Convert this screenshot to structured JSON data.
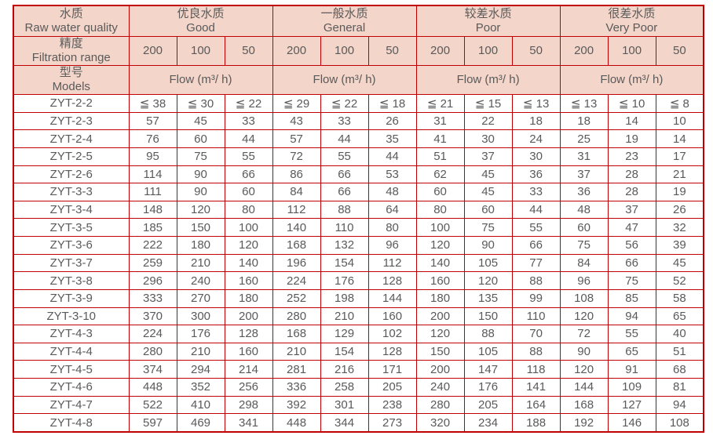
{
  "colors": {
    "border": "#c00000",
    "header_bg": "#f3d5ca",
    "text": "#5a5a5a",
    "page_bg": "#ffffff"
  },
  "header": {
    "corner_row1": {
      "zh": "水质",
      "en": "Raw water quality"
    },
    "corner_row2": {
      "zh": "精度",
      "en": "Filtration range"
    },
    "corner_row3": {
      "zh": "型号",
      "en": "Models"
    },
    "quality_groups": [
      {
        "zh": "优良水质",
        "en": "Good"
      },
      {
        "zh": "一般水质",
        "en": "General"
      },
      {
        "zh": "较差水质",
        "en": "Poor"
      },
      {
        "zh": "很差水质",
        "en": "Very Poor"
      }
    ],
    "filtration_values": [
      "200",
      "100",
      "50"
    ],
    "flow_label": "Flow (m³/ h)"
  },
  "rows": [
    {
      "model": "ZYT-2-2",
      "values": [
        "≦ 38",
        "≦ 30",
        "≦ 22",
        "≦ 29",
        "≦ 22",
        "≦ 18",
        "≦ 21",
        "≦ 15",
        "≦ 13",
        "≦ 13",
        "≦ 10",
        "≦ 8"
      ]
    },
    {
      "model": "ZYT-2-3",
      "values": [
        "57",
        "45",
        "33",
        "43",
        "33",
        "26",
        "31",
        "22",
        "18",
        "18",
        "14",
        "10"
      ]
    },
    {
      "model": "ZYT-2-4",
      "values": [
        "76",
        "60",
        "44",
        "57",
        "44",
        "35",
        "41",
        "30",
        "24",
        "25",
        "19",
        "14"
      ]
    },
    {
      "model": "ZYT-2-5",
      "values": [
        "95",
        "75",
        "55",
        "72",
        "55",
        "44",
        "51",
        "37",
        "30",
        "31",
        "23",
        "17"
      ]
    },
    {
      "model": "ZYT-2-6",
      "values": [
        "114",
        "90",
        "66",
        "86",
        "66",
        "53",
        "62",
        "45",
        "36",
        "37",
        "28",
        "21"
      ]
    },
    {
      "model": "ZYT-3-3",
      "values": [
        "111",
        "90",
        "60",
        "84",
        "66",
        "48",
        "60",
        "45",
        "33",
        "36",
        "28",
        "19"
      ]
    },
    {
      "model": "ZYT-3-4",
      "values": [
        "148",
        "120",
        "80",
        "112",
        "88",
        "64",
        "80",
        "60",
        "44",
        "48",
        "37",
        "26"
      ]
    },
    {
      "model": "ZYT-3-5",
      "values": [
        "185",
        "150",
        "100",
        "140",
        "110",
        "80",
        "100",
        "75",
        "55",
        "60",
        "47",
        "32"
      ]
    },
    {
      "model": "ZYT-3-6",
      "values": [
        "222",
        "180",
        "120",
        "168",
        "132",
        "96",
        "120",
        "90",
        "66",
        "75",
        "56",
        "39"
      ]
    },
    {
      "model": "ZYT-3-7",
      "values": [
        "259",
        "210",
        "140",
        "196",
        "154",
        "112",
        "140",
        "105",
        "77",
        "84",
        "66",
        "45"
      ]
    },
    {
      "model": "ZYT-3-8",
      "values": [
        "296",
        "240",
        "160",
        "224",
        "176",
        "128",
        "160",
        "120",
        "88",
        "96",
        "75",
        "52"
      ]
    },
    {
      "model": "ZYT-3-9",
      "values": [
        "333",
        "270",
        "180",
        "252",
        "198",
        "144",
        "180",
        "135",
        "99",
        "108",
        "85",
        "58"
      ]
    },
    {
      "model": "ZYT-3-10",
      "values": [
        "370",
        "300",
        "200",
        "280",
        "210",
        "160",
        "200",
        "150",
        "110",
        "120",
        "94",
        "65"
      ]
    },
    {
      "model": "ZYT-4-3",
      "values": [
        "224",
        "176",
        "128",
        "168",
        "129",
        "102",
        "120",
        "88",
        "70",
        "72",
        "55",
        "40"
      ]
    },
    {
      "model": "ZYT-4-4",
      "values": [
        "280",
        "210",
        "160",
        "210",
        "154",
        "128",
        "150",
        "105",
        "88",
        "90",
        "65",
        "51"
      ]
    },
    {
      "model": "ZYT-4-5",
      "values": [
        "374",
        "294",
        "214",
        "281",
        "216",
        "171",
        "200",
        "147",
        "118",
        "120",
        "91",
        "68"
      ]
    },
    {
      "model": "ZYT-4-6",
      "values": [
        "448",
        "352",
        "256",
        "336",
        "258",
        "205",
        "240",
        "176",
        "141",
        "144",
        "109",
        "81"
      ]
    },
    {
      "model": "ZYT-4-7",
      "values": [
        "522",
        "410",
        "298",
        "392",
        "301",
        "238",
        "280",
        "205",
        "164",
        "168",
        "127",
        "94"
      ]
    },
    {
      "model": "ZYT-4-8",
      "values": [
        "597",
        "469",
        "341",
        "448",
        "344",
        "273",
        "320",
        "234",
        "188",
        "192",
        "146",
        "108"
      ]
    }
  ]
}
